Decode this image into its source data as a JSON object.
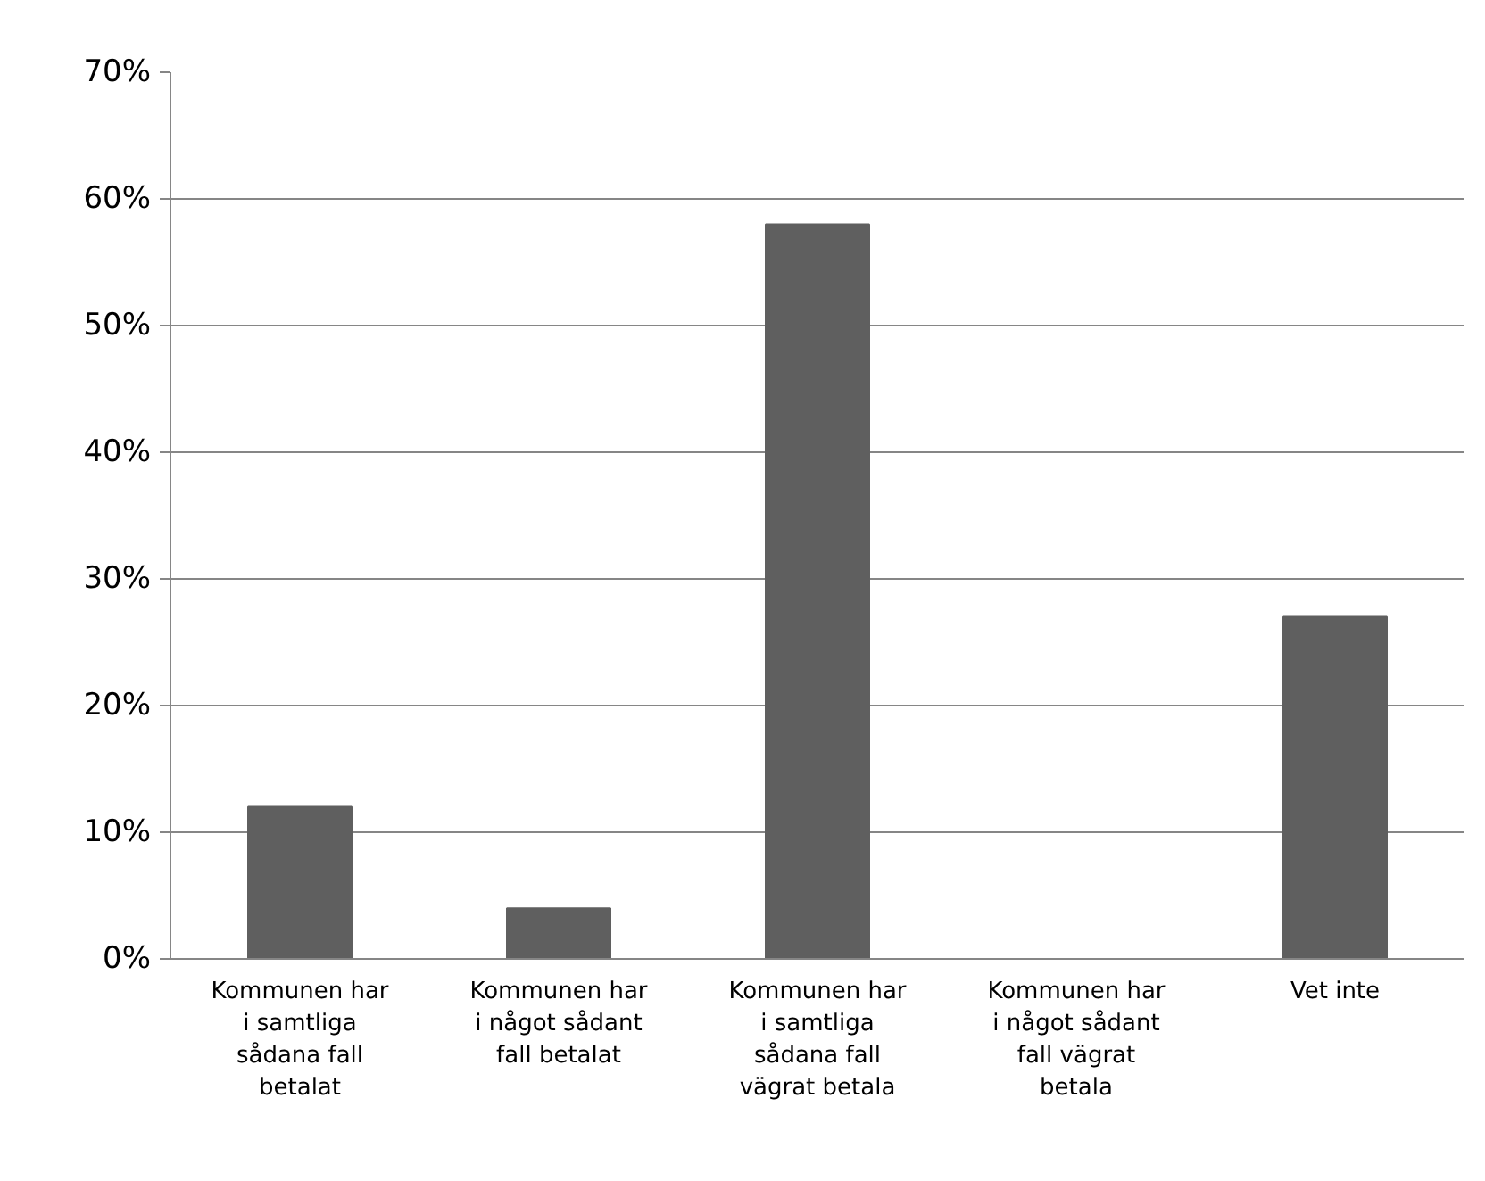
{
  "chart_data": {
    "type": "bar",
    "categories": [
      "Kommunen har\ni samtliga\nsådana fall\nbetalat",
      "Kommunen har\ni något sådant\nfall betalat",
      "Kommunen har\ni samtliga\nsådana fall\nvägrat betala",
      "Kommunen har\ni något sådant\nfall vägrat\nbetala",
      "Vet inte"
    ],
    "values": [
      12,
      4,
      58,
      0,
      27
    ],
    "color": "#5f5f5f",
    "ylim": [
      0,
      70
    ],
    "yticks": [
      {
        "value": 0,
        "label": "0%"
      },
      {
        "value": 10,
        "label": "10%"
      },
      {
        "value": 20,
        "label": "20%"
      },
      {
        "value": 30,
        "label": "30%"
      },
      {
        "value": 40,
        "label": "40%"
      },
      {
        "value": 50,
        "label": "50%"
      },
      {
        "value": 60,
        "label": "60%"
      },
      {
        "value": 70,
        "label": "70%"
      }
    ],
    "grid": "y"
  }
}
